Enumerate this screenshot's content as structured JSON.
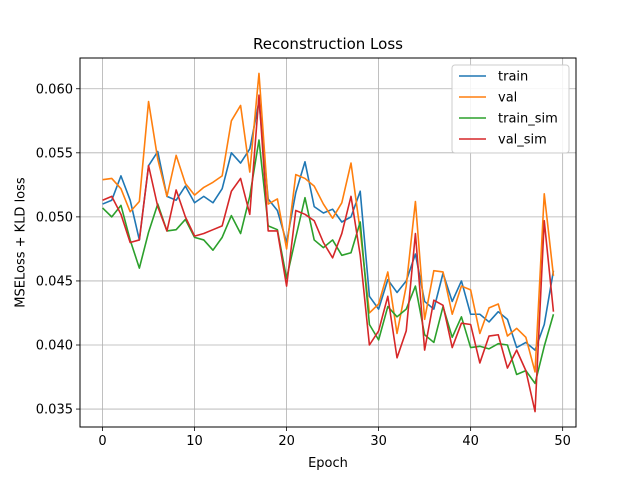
{
  "chart_data": {
    "type": "line",
    "title": "Reconstruction Loss",
    "xlabel": "Epoch",
    "ylabel": "MSELoss + KLD loss",
    "xlim": [
      -2.45,
      51.45
    ],
    "ylim": [
      0.0336,
      0.0624
    ],
    "xticks": [
      0,
      10,
      20,
      30,
      40,
      50
    ],
    "yticks": [
      0.035,
      0.04,
      0.045,
      0.05,
      0.055,
      0.06
    ],
    "ytick_labels": [
      "0.035",
      "0.040",
      "0.045",
      "0.050",
      "0.055",
      "0.060"
    ],
    "grid": true,
    "legend_position": "top-right",
    "x": [
      0,
      1,
      2,
      3,
      4,
      5,
      6,
      7,
      8,
      9,
      10,
      11,
      12,
      13,
      14,
      15,
      16,
      17,
      18,
      19,
      20,
      21,
      22,
      23,
      24,
      25,
      26,
      27,
      28,
      29,
      30,
      31,
      32,
      33,
      34,
      35,
      36,
      37,
      38,
      39,
      40,
      41,
      42,
      43,
      44,
      45,
      46,
      47,
      48,
      49
    ],
    "series": [
      {
        "name": "train",
        "color": "#1f77b4",
        "values": [
          0.051,
          0.0513,
          0.0532,
          0.0513,
          0.0482,
          0.054,
          0.0551,
          0.0516,
          0.0513,
          0.0524,
          0.0511,
          0.0516,
          0.0511,
          0.0522,
          0.055,
          0.0542,
          0.0553,
          0.059,
          0.0514,
          0.0505,
          0.048,
          0.0519,
          0.0543,
          0.0508,
          0.0503,
          0.0506,
          0.0496,
          0.05,
          0.052,
          0.0438,
          0.0428,
          0.0451,
          0.0441,
          0.045,
          0.0471,
          0.0434,
          0.0428,
          0.0456,
          0.0434,
          0.045,
          0.0424,
          0.0424,
          0.0418,
          0.0426,
          0.042,
          0.0398,
          0.0402,
          0.0396,
          0.0416,
          0.0458
        ]
      },
      {
        "name": "val",
        "color": "#ff7f0e",
        "values": [
          0.0529,
          0.053,
          0.0522,
          0.0504,
          0.0512,
          0.059,
          0.0545,
          0.0516,
          0.0548,
          0.0526,
          0.0517,
          0.0523,
          0.0527,
          0.0532,
          0.0575,
          0.0587,
          0.0535,
          0.0612,
          0.051,
          0.0514,
          0.0475,
          0.0533,
          0.053,
          0.0524,
          0.051,
          0.0499,
          0.0511,
          0.0542,
          0.0489,
          0.0425,
          0.0432,
          0.0457,
          0.0409,
          0.0446,
          0.0512,
          0.042,
          0.0458,
          0.0457,
          0.0424,
          0.0446,
          0.0443,
          0.0409,
          0.0429,
          0.0432,
          0.0407,
          0.0413,
          0.0406,
          0.0379,
          0.0518,
          0.0454
        ]
      },
      {
        "name": "train_sim",
        "color": "#2ca02c",
        "values": [
          0.0507,
          0.05,
          0.0509,
          0.0482,
          0.046,
          0.0488,
          0.051,
          0.0489,
          0.049,
          0.0498,
          0.0484,
          0.0482,
          0.0474,
          0.0484,
          0.0501,
          0.0487,
          0.0516,
          0.056,
          0.0493,
          0.049,
          0.0452,
          0.0484,
          0.0515,
          0.0482,
          0.0476,
          0.0482,
          0.047,
          0.0472,
          0.0496,
          0.0416,
          0.0404,
          0.043,
          0.0422,
          0.0428,
          0.0446,
          0.0408,
          0.0402,
          0.043,
          0.0406,
          0.0422,
          0.0398,
          0.0399,
          0.0397,
          0.0401,
          0.04,
          0.0377,
          0.038,
          0.037,
          0.0399,
          0.0424
        ]
      },
      {
        "name": "val_sim",
        "color": "#d62728",
        "values": [
          0.0513,
          0.0516,
          0.0502,
          0.048,
          0.0482,
          0.054,
          0.0508,
          0.0489,
          0.0521,
          0.05,
          0.0485,
          0.0487,
          0.049,
          0.0493,
          0.052,
          0.053,
          0.0502,
          0.0595,
          0.0489,
          0.0489,
          0.0446,
          0.0505,
          0.0502,
          0.0497,
          0.048,
          0.0468,
          0.0487,
          0.0516,
          0.047,
          0.04,
          0.0411,
          0.0438,
          0.039,
          0.0411,
          0.0487,
          0.0396,
          0.0435,
          0.0431,
          0.0398,
          0.0417,
          0.0416,
          0.0386,
          0.0407,
          0.0408,
          0.0382,
          0.0396,
          0.038,
          0.0348,
          0.0497,
          0.0426
        ]
      }
    ]
  }
}
